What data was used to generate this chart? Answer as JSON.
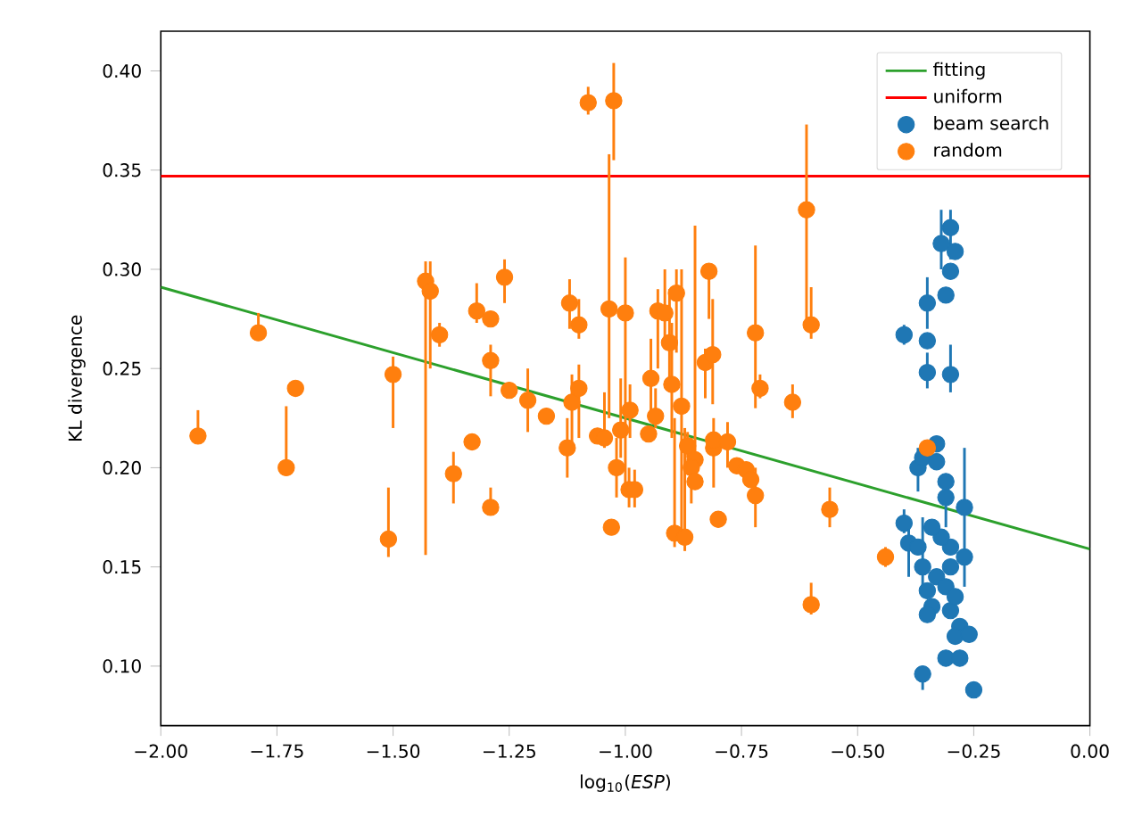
{
  "chart_data": {
    "type": "scatter",
    "xlabel": "log$_{10}$(*ESP*)",
    "ylabel": "KL divergence",
    "xlim": [
      -2.0,
      0.0
    ],
    "ylim": [
      0.07,
      0.42
    ],
    "xticks": [
      {
        "value": -2.0,
        "label": "−2.00"
      },
      {
        "value": -1.75,
        "label": "−1.75"
      },
      {
        "value": -1.5,
        "label": "−1.50"
      },
      {
        "value": -1.25,
        "label": "−1.25"
      },
      {
        "value": -1.0,
        "label": "−1.00"
      },
      {
        "value": -0.75,
        "label": "−0.75"
      },
      {
        "value": -0.5,
        "label": "−0.50"
      },
      {
        "value": -0.25,
        "label": "−0.25"
      },
      {
        "value": 0.0,
        "label": "0.00"
      }
    ],
    "yticks": [
      {
        "value": 0.1,
        "label": "0.10"
      },
      {
        "value": 0.15,
        "label": "0.15"
      },
      {
        "value": 0.2,
        "label": "0.20"
      },
      {
        "value": 0.25,
        "label": "0.25"
      },
      {
        "value": 0.3,
        "label": "0.30"
      },
      {
        "value": 0.35,
        "label": "0.35"
      },
      {
        "value": 0.4,
        "label": "0.40"
      }
    ],
    "marker": "circle",
    "legend": "top right",
    "ref_lines": [
      {
        "axis": "y",
        "value": 0.347,
        "label": "uniform",
        "color": "#ff0000"
      }
    ],
    "series": [
      {
        "name": "fitting",
        "type": "line",
        "marker": "none",
        "color": "#2ca02c",
        "x": [
          -2.0,
          0.0
        ],
        "values": [
          0.291,
          0.159
        ]
      },
      {
        "name": "beam search",
        "color": "#1f77b4",
        "x": [
          -0.4,
          -0.35,
          -0.35,
          -0.35,
          -0.32,
          -0.3,
          -0.3,
          -0.31,
          -0.29,
          -0.3,
          -0.37,
          -0.36,
          -0.33,
          -0.31,
          -0.31,
          -0.27,
          -0.4,
          -0.39,
          -0.37,
          -0.36,
          -0.35,
          -0.34,
          -0.35,
          -0.33,
          -0.31,
          -0.3,
          -0.29,
          -0.27,
          -0.3,
          -0.28,
          -0.29,
          -0.26,
          -0.31,
          -0.28,
          -0.36,
          -0.25,
          -0.33,
          -0.3,
          -0.32,
          -0.34
        ],
        "values": [
          0.267,
          0.283,
          0.264,
          0.248,
          0.313,
          0.321,
          0.299,
          0.287,
          0.309,
          0.247,
          0.2,
          0.205,
          0.203,
          0.193,
          0.185,
          0.18,
          0.172,
          0.162,
          0.16,
          0.15,
          0.138,
          0.13,
          0.126,
          0.145,
          0.14,
          0.128,
          0.135,
          0.155,
          0.16,
          0.12,
          0.115,
          0.116,
          0.104,
          0.104,
          0.096,
          0.088,
          0.212,
          0.15,
          0.165,
          0.17
        ],
        "errors": [
          [
            0.262,
            0.272
          ],
          [
            0.27,
            0.296
          ],
          null,
          [
            0.24,
            0.258
          ],
          [
            0.3,
            0.33
          ],
          [
            0.305,
            0.33
          ],
          null,
          null,
          null,
          [
            0.238,
            0.262
          ],
          [
            0.188,
            0.21
          ],
          null,
          null,
          null,
          [
            0.17,
            0.195
          ],
          [
            0.14,
            0.21
          ],
          [
            0.167,
            0.179
          ],
          [
            0.145,
            0.17
          ],
          null,
          [
            0.14,
            0.175
          ],
          null,
          null,
          null,
          null,
          null,
          null,
          null,
          null,
          null,
          null,
          null,
          null,
          null,
          null,
          [
            0.088,
            0.1
          ],
          null,
          null,
          null,
          null,
          null
        ]
      },
      {
        "name": "random",
        "color": "#ff7f0e",
        "x": [
          -1.92,
          -1.79,
          -1.73,
          -1.71,
          -1.51,
          -1.5,
          -1.43,
          -1.42,
          -1.4,
          -1.37,
          -1.33,
          -1.32,
          -1.29,
          -1.29,
          -1.29,
          -1.26,
          -1.25,
          -1.21,
          -1.17,
          -1.12,
          -1.115,
          -1.125,
          -1.1,
          -1.1,
          -1.08,
          -1.06,
          -1.045,
          -1.035,
          -1.025,
          -1.03,
          -1.01,
          -1.0,
          -1.019,
          -0.992,
          -0.99,
          -0.98,
          -0.95,
          -0.945,
          -0.935,
          -0.93,
          -0.915,
          -0.905,
          -0.9,
          -0.89,
          -0.894,
          -0.879,
          -0.872,
          -0.866,
          -0.85,
          -0.858,
          -0.85,
          -0.82,
          -0.828,
          -0.812,
          -0.81,
          -0.81,
          -0.8,
          -0.78,
          -0.76,
          -0.74,
          -0.73,
          -0.72,
          -0.72,
          -0.71,
          -0.64,
          -0.61,
          -0.6,
          -0.6,
          -0.56,
          -0.44,
          -0.35
        ],
        "values": [
          0.216,
          0.268,
          0.2,
          0.24,
          0.164,
          0.247,
          0.294,
          0.289,
          0.267,
          0.197,
          0.213,
          0.279,
          0.254,
          0.18,
          0.275,
          0.296,
          0.239,
          0.234,
          0.226,
          0.283,
          0.233,
          0.21,
          0.272,
          0.24,
          0.384,
          0.216,
          0.215,
          0.28,
          0.385,
          0.17,
          0.219,
          0.278,
          0.2,
          0.189,
          0.229,
          0.189,
          0.217,
          0.245,
          0.226,
          0.279,
          0.278,
          0.263,
          0.242,
          0.288,
          0.167,
          0.231,
          0.165,
          0.211,
          0.204,
          0.2,
          0.193,
          0.299,
          0.253,
          0.257,
          0.21,
          0.214,
          0.174,
          0.213,
          0.201,
          0.199,
          0.194,
          0.186,
          0.268,
          0.24,
          0.233,
          0.33,
          0.131,
          0.272,
          0.179,
          0.155,
          0.21
        ],
        "errors": [
          [
            0.216,
            0.229
          ],
          [
            0.268,
            0.278
          ],
          [
            0.2,
            0.231
          ],
          null,
          [
            0.155,
            0.19
          ],
          [
            0.22,
            0.256
          ],
          [
            0.156,
            0.304
          ],
          [
            0.25,
            0.304
          ],
          [
            0.261,
            0.273
          ],
          [
            0.182,
            0.208
          ],
          [
            0.21,
            0.217
          ],
          [
            0.273,
            0.293
          ],
          [
            0.236,
            0.262
          ],
          [
            0.18,
            0.19
          ],
          null,
          [
            0.283,
            0.305
          ],
          null,
          [
            0.218,
            0.25
          ],
          null,
          [
            0.27,
            0.295
          ],
          [
            0.21,
            0.247
          ],
          [
            0.195,
            0.225
          ],
          [
            0.265,
            0.285
          ],
          [
            0.215,
            0.252
          ],
          [
            0.378,
            0.392
          ],
          null,
          [
            0.21,
            0.238
          ],
          [
            0.225,
            0.358
          ],
          [
            0.355,
            0.404
          ],
          null,
          [
            0.205,
            0.245
          ],
          [
            0.19,
            0.306
          ],
          [
            0.185,
            0.215
          ],
          [
            0.18,
            0.2
          ],
          [
            0.215,
            0.242
          ],
          [
            0.18,
            0.199
          ],
          null,
          [
            0.227,
            0.265
          ],
          [
            0.22,
            0.24
          ],
          [
            0.25,
            0.29
          ],
          [
            0.265,
            0.3
          ],
          [
            0.245,
            0.29
          ],
          [
            0.215,
            0.273
          ],
          [
            0.258,
            0.3
          ],
          [
            0.16,
            0.225
          ],
          [
            0.165,
            0.3
          ],
          [
            0.158,
            0.22
          ],
          [
            0.205,
            0.218
          ],
          [
            0.2,
            0.322
          ],
          [
            0.182,
            0.215
          ],
          null,
          [
            0.275,
            0.3
          ],
          [
            0.235,
            0.26
          ],
          [
            0.232,
            0.285
          ],
          [
            0.19,
            0.225
          ],
          null,
          null,
          [
            0.2,
            0.223
          ],
          null,
          null,
          null,
          [
            0.17,
            0.2
          ],
          [
            0.23,
            0.312
          ],
          [
            0.235,
            0.247
          ],
          [
            0.225,
            0.242
          ],
          [
            0.275,
            0.373
          ],
          [
            0.126,
            0.142
          ],
          [
            0.265,
            0.291
          ],
          [
            0.17,
            0.19
          ],
          [
            0.15,
            0.16
          ],
          null
        ]
      }
    ]
  }
}
